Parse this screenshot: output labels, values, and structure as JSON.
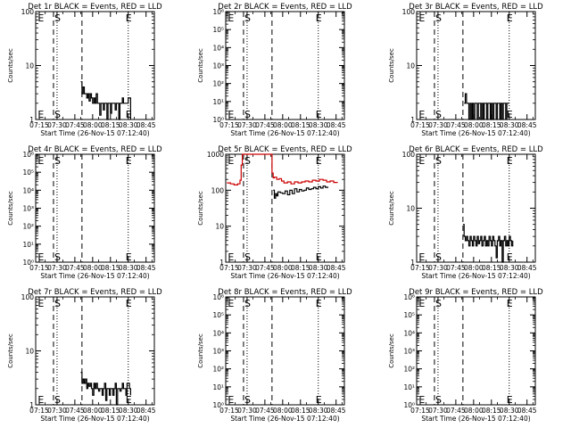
{
  "page": {
    "x_ticks": [
      "07:15",
      "07:30",
      "07:45",
      "08:00",
      "08:15",
      "08:30",
      "08:45"
    ],
    "xlabel": "Start Time (26-Nov-15 07:12:40)",
    "ylabel": "Counts/sec",
    "marker_s": "S",
    "marker_e": "E"
  },
  "chart_data": [
    {
      "type": "line",
      "title": "Det 1r BLACK = Events, RED = LLD",
      "y_scale": "log",
      "ylim": [
        1,
        100
      ],
      "y_ticks": [
        {
          "v": 1,
          "label": "1"
        },
        {
          "v": 10,
          "label": "10"
        },
        {
          "v": 100,
          "label": "100"
        }
      ],
      "markers": {
        "E_left": "07:13",
        "S": "07:27",
        "dash2": "07:51",
        "E_right": "08:27",
        "dot1": "07:30",
        "dot2": "08:30"
      },
      "series": [
        {
          "color": "#000000",
          "x": [
            "07:50",
            "07:51",
            "07:52",
            "07:53",
            "07:54",
            "07:55",
            "07:56",
            "07:57",
            "07:58",
            "07:59",
            "08:00",
            "08:01",
            "08:02",
            "08:03",
            "08:04",
            "08:05",
            "08:06",
            "08:07",
            "08:08",
            "08:09",
            "08:10",
            "08:11",
            "08:12",
            "08:13",
            "08:14",
            "08:15",
            "08:16",
            "08:17",
            "08:18",
            "08:19",
            "08:20",
            "08:21",
            "08:22",
            "08:23",
            "08:24",
            "08:25",
            "08:26",
            "08:27",
            "08:28",
            "08:29",
            "08:30",
            "08:31",
            "08:32"
          ],
          "y": [
            5,
            3,
            4,
            3,
            3,
            2.5,
            3,
            2.2,
            3,
            2.5,
            2,
            2.5,
            2,
            3,
            2,
            2,
            1.2,
            2,
            2,
            1.5,
            2,
            2,
            1,
            2,
            2,
            1.3,
            2,
            2,
            2,
            1.5,
            2,
            2,
            1,
            2,
            2,
            2.5,
            2,
            2,
            2,
            2,
            2.5,
            2.5,
            1
          ]
        }
      ]
    },
    {
      "type": "line",
      "title": "Det 2r BLACK = Events, RED = LLD",
      "y_scale": "log",
      "ylim": [
        1,
        1000000
      ],
      "y_ticks": [
        {
          "v": 1,
          "label": "10⁰"
        },
        {
          "v": 10,
          "label": "10¹"
        },
        {
          "v": 100,
          "label": "10²"
        },
        {
          "v": 1000,
          "label": "10³"
        },
        {
          "v": 10000,
          "label": "10⁴"
        },
        {
          "v": 100000,
          "label": "10⁵"
        },
        {
          "v": 1000000,
          "label": "10⁶"
        }
      ],
      "markers": {
        "E_left": "07:13",
        "S": "07:27",
        "dash2": "07:51",
        "E_right": "08:27",
        "dot1": "07:30",
        "dot2": "08:30"
      },
      "series": []
    },
    {
      "type": "line",
      "title": "Det 3r BLACK = Events, RED = LLD",
      "y_scale": "log",
      "ylim": [
        1,
        100
      ],
      "y_ticks": [
        {
          "v": 1,
          "label": "1"
        },
        {
          "v": 10,
          "label": "10"
        },
        {
          "v": 100,
          "label": "100"
        }
      ],
      "markers": {
        "E_left": "07:13",
        "S": "07:27",
        "dash2": "07:51",
        "E_right": "08:27",
        "dot1": "07:30",
        "dot2": "08:30"
      },
      "series": [
        {
          "color": "#000000",
          "x": [
            "07:52",
            "07:53",
            "07:54",
            "07:55",
            "07:56",
            "07:57",
            "07:58",
            "07:59",
            "08:00",
            "08:01",
            "08:02",
            "08:03",
            "08:04",
            "08:05",
            "08:06",
            "08:07",
            "08:08",
            "08:09",
            "08:10",
            "08:11",
            "08:12",
            "08:13",
            "08:14",
            "08:15",
            "08:16",
            "08:17",
            "08:18",
            "08:19",
            "08:20",
            "08:21",
            "08:22",
            "08:23",
            "08:24",
            "08:25",
            "08:26",
            "08:27",
            "08:28",
            "08:29",
            "08:30"
          ],
          "y": [
            2,
            3,
            2,
            2,
            1,
            2,
            1,
            2,
            1,
            2,
            2,
            1,
            2,
            2,
            1,
            2,
            1,
            2,
            2,
            1,
            2,
            2,
            1,
            2,
            1,
            2,
            2,
            1,
            2,
            2,
            1,
            2,
            1,
            2,
            2,
            1,
            2,
            2,
            2
          ]
        }
      ]
    },
    {
      "type": "line",
      "title": "Det 4r BLACK = Events, RED = LLD",
      "y_scale": "log",
      "ylim": [
        1,
        1000000
      ],
      "y_ticks": [
        {
          "v": 1,
          "label": "10⁰"
        },
        {
          "v": 10,
          "label": "10¹"
        },
        {
          "v": 100,
          "label": "10²"
        },
        {
          "v": 1000,
          "label": "10³"
        },
        {
          "v": 10000,
          "label": "10⁴"
        },
        {
          "v": 100000,
          "label": "10⁵"
        },
        {
          "v": 1000000,
          "label": "10⁶"
        }
      ],
      "markers": {
        "E_left": "07:13",
        "S": "07:27",
        "dash2": "07:51",
        "E_right": "08:27",
        "dot1": "07:30",
        "dot2": "08:30"
      },
      "series": []
    },
    {
      "type": "line",
      "title": "Det 5r BLACK = Events, RED = LLD",
      "y_scale": "log",
      "ylim": [
        1,
        1000
      ],
      "y_ticks": [
        {
          "v": 1,
          "label": "1"
        },
        {
          "v": 10,
          "label": "10"
        },
        {
          "v": 100,
          "label": "100"
        },
        {
          "v": 1000,
          "label": "1000"
        }
      ],
      "markers": {
        "E_left": "07:13",
        "S": "07:27",
        "dash2": "07:51",
        "E_right": "08:27",
        "dot1": "07:30",
        "dot2": "08:30"
      },
      "series": [
        {
          "color": "#cc0000",
          "x": [
            "07:13",
            "07:16",
            "07:19",
            "07:22",
            "07:24",
            "07:25",
            "07:26",
            "07:50",
            "07:51",
            "07:52",
            "07:53",
            "07:55",
            "07:57",
            "07:59",
            "08:01",
            "08:04",
            "08:07",
            "08:10",
            "08:13",
            "08:16",
            "08:19",
            "08:22",
            "08:25",
            "08:28",
            "08:31",
            "08:34",
            "08:37",
            "08:40",
            "08:43",
            "08:46"
          ],
          "y": [
            160,
            150,
            140,
            150,
            190,
            500,
            1000,
            1000,
            300,
            220,
            230,
            200,
            210,
            180,
            160,
            170,
            150,
            170,
            160,
            170,
            180,
            170,
            190,
            180,
            200,
            190,
            170,
            180,
            165,
            160
          ]
        },
        {
          "color": "#000000",
          "x": [
            "07:52",
            "07:53",
            "07:54",
            "07:55",
            "07:56",
            "07:58",
            "08:00",
            "08:02",
            "08:04",
            "08:06",
            "08:08",
            "08:10",
            "08:12",
            "08:14",
            "08:16",
            "08:18",
            "08:20",
            "08:22",
            "08:24",
            "08:26",
            "08:28",
            "08:30",
            "08:32",
            "08:34",
            "08:36",
            "08:38"
          ],
          "y": [
            100,
            60,
            80,
            70,
            90,
            85,
            80,
            95,
            75,
            100,
            80,
            110,
            90,
            105,
            95,
            100,
            115,
            105,
            110,
            120,
            110,
            125,
            115,
            130,
            120,
            125
          ]
        }
      ]
    },
    {
      "type": "line",
      "title": "Det 6r BLACK = Events, RED = LLD",
      "y_scale": "log",
      "ylim": [
        1,
        100
      ],
      "y_ticks": [
        {
          "v": 1,
          "label": "1"
        },
        {
          "v": 10,
          "label": "10"
        },
        {
          "v": 100,
          "label": "100"
        }
      ],
      "markers": {
        "E_left": "07:13",
        "S": "07:27",
        "dash2": "07:51",
        "E_right": "08:27",
        "dot1": "07:30",
        "dot2": "08:30"
      },
      "series": [
        {
          "color": "#000000",
          "x": [
            "07:51",
            "07:52",
            "07:53",
            "07:54",
            "07:55",
            "07:56",
            "07:57",
            "07:58",
            "07:59",
            "08:00",
            "08:01",
            "08:02",
            "08:03",
            "08:04",
            "08:05",
            "08:06",
            "08:07",
            "08:08",
            "08:09",
            "08:10",
            "08:11",
            "08:12",
            "08:13",
            "08:14",
            "08:15",
            "08:16",
            "08:17",
            "08:18",
            "08:19",
            "08:20",
            "08:21",
            "08:22",
            "08:23",
            "08:24",
            "08:25",
            "08:26",
            "08:27",
            "08:28",
            "08:29",
            "08:30",
            "08:31",
            "08:32",
            "08:33"
          ],
          "y": [
            5,
            3,
            2.5,
            3,
            2.5,
            2,
            3,
            2.5,
            2,
            3,
            2.5,
            2,
            3,
            2.2,
            2.5,
            3,
            2,
            2.5,
            3,
            2,
            2.5,
            2,
            3,
            2.5,
            2,
            3,
            2.5,
            2,
            1.2,
            2.5,
            3,
            2,
            2.5,
            1,
            2.5,
            3,
            2,
            2.5,
            2,
            3,
            2.5,
            2,
            2.5
          ]
        }
      ]
    },
    {
      "type": "line",
      "title": "Det 7r BLACK = Events, RED = LLD",
      "y_scale": "log",
      "ylim": [
        1,
        100
      ],
      "y_ticks": [
        {
          "v": 1,
          "label": "1"
        },
        {
          "v": 10,
          "label": "10"
        },
        {
          "v": 100,
          "label": "100"
        }
      ],
      "markers": {
        "E_left": "07:13",
        "S": "07:27",
        "dash2": "07:51",
        "E_right": "08:27",
        "dot1": "07:30",
        "dot2": "08:30"
      },
      "series": [
        {
          "color": "#000000",
          "x": [
            "07:50",
            "07:51",
            "07:52",
            "07:53",
            "07:54",
            "07:55",
            "07:56",
            "07:57",
            "07:58",
            "07:59",
            "08:00",
            "08:01",
            "08:02",
            "08:03",
            "08:04",
            "08:05",
            "08:06",
            "08:07",
            "08:08",
            "08:09",
            "08:10",
            "08:11",
            "08:12",
            "08:13",
            "08:14",
            "08:15",
            "08:16",
            "08:17",
            "08:18",
            "08:19",
            "08:20",
            "08:21",
            "08:22",
            "08:23",
            "08:24",
            "08:25",
            "08:26",
            "08:27",
            "08:28",
            "08:29",
            "08:30",
            "08:31",
            "08:32"
          ],
          "y": [
            4,
            2.5,
            3,
            2.5,
            3,
            2,
            2.5,
            2.2,
            2.5,
            2,
            1.5,
            2.5,
            2,
            2.5,
            2,
            1.8,
            2,
            2,
            1.5,
            2,
            2.5,
            1.2,
            2,
            2,
            1.5,
            2,
            2,
            1.5,
            2,
            2.5,
            1,
            2,
            2,
            1.8,
            2,
            2.5,
            2,
            2,
            1.5,
            2.5,
            2.5,
            2,
            1.5
          ]
        }
      ]
    },
    {
      "type": "line",
      "title": "Det 8r BLACK = Events, RED = LLD",
      "y_scale": "log",
      "ylim": [
        1,
        1000000
      ],
      "y_ticks": [
        {
          "v": 1,
          "label": "10⁰"
        },
        {
          "v": 10,
          "label": "10¹"
        },
        {
          "v": 100,
          "label": "10²"
        },
        {
          "v": 1000,
          "label": "10³"
        },
        {
          "v": 10000,
          "label": "10⁴"
        },
        {
          "v": 100000,
          "label": "10⁵"
        },
        {
          "v": 1000000,
          "label": "10⁶"
        }
      ],
      "markers": {
        "E_left": "07:13",
        "S": "07:27",
        "dash2": "07:51",
        "E_right": "08:27",
        "dot1": "07:30",
        "dot2": "08:30"
      },
      "series": []
    },
    {
      "type": "line",
      "title": "Det 9r BLACK = Events, RED = LLD",
      "y_scale": "log",
      "ylim": [
        1,
        1000000
      ],
      "y_ticks": [
        {
          "v": 1,
          "label": "10⁰"
        },
        {
          "v": 10,
          "label": "10¹"
        },
        {
          "v": 100,
          "label": "10²"
        },
        {
          "v": 1000,
          "label": "10³"
        },
        {
          "v": 10000,
          "label": "10⁴"
        },
        {
          "v": 100000,
          "label": "10⁵"
        },
        {
          "v": 1000000,
          "label": "10⁶"
        }
      ],
      "markers": {
        "E_left": "07:13",
        "S": "07:27",
        "dash2": "07:51",
        "E_right": "08:27",
        "dot1": "07:30",
        "dot2": "08:30"
      },
      "series": []
    }
  ]
}
